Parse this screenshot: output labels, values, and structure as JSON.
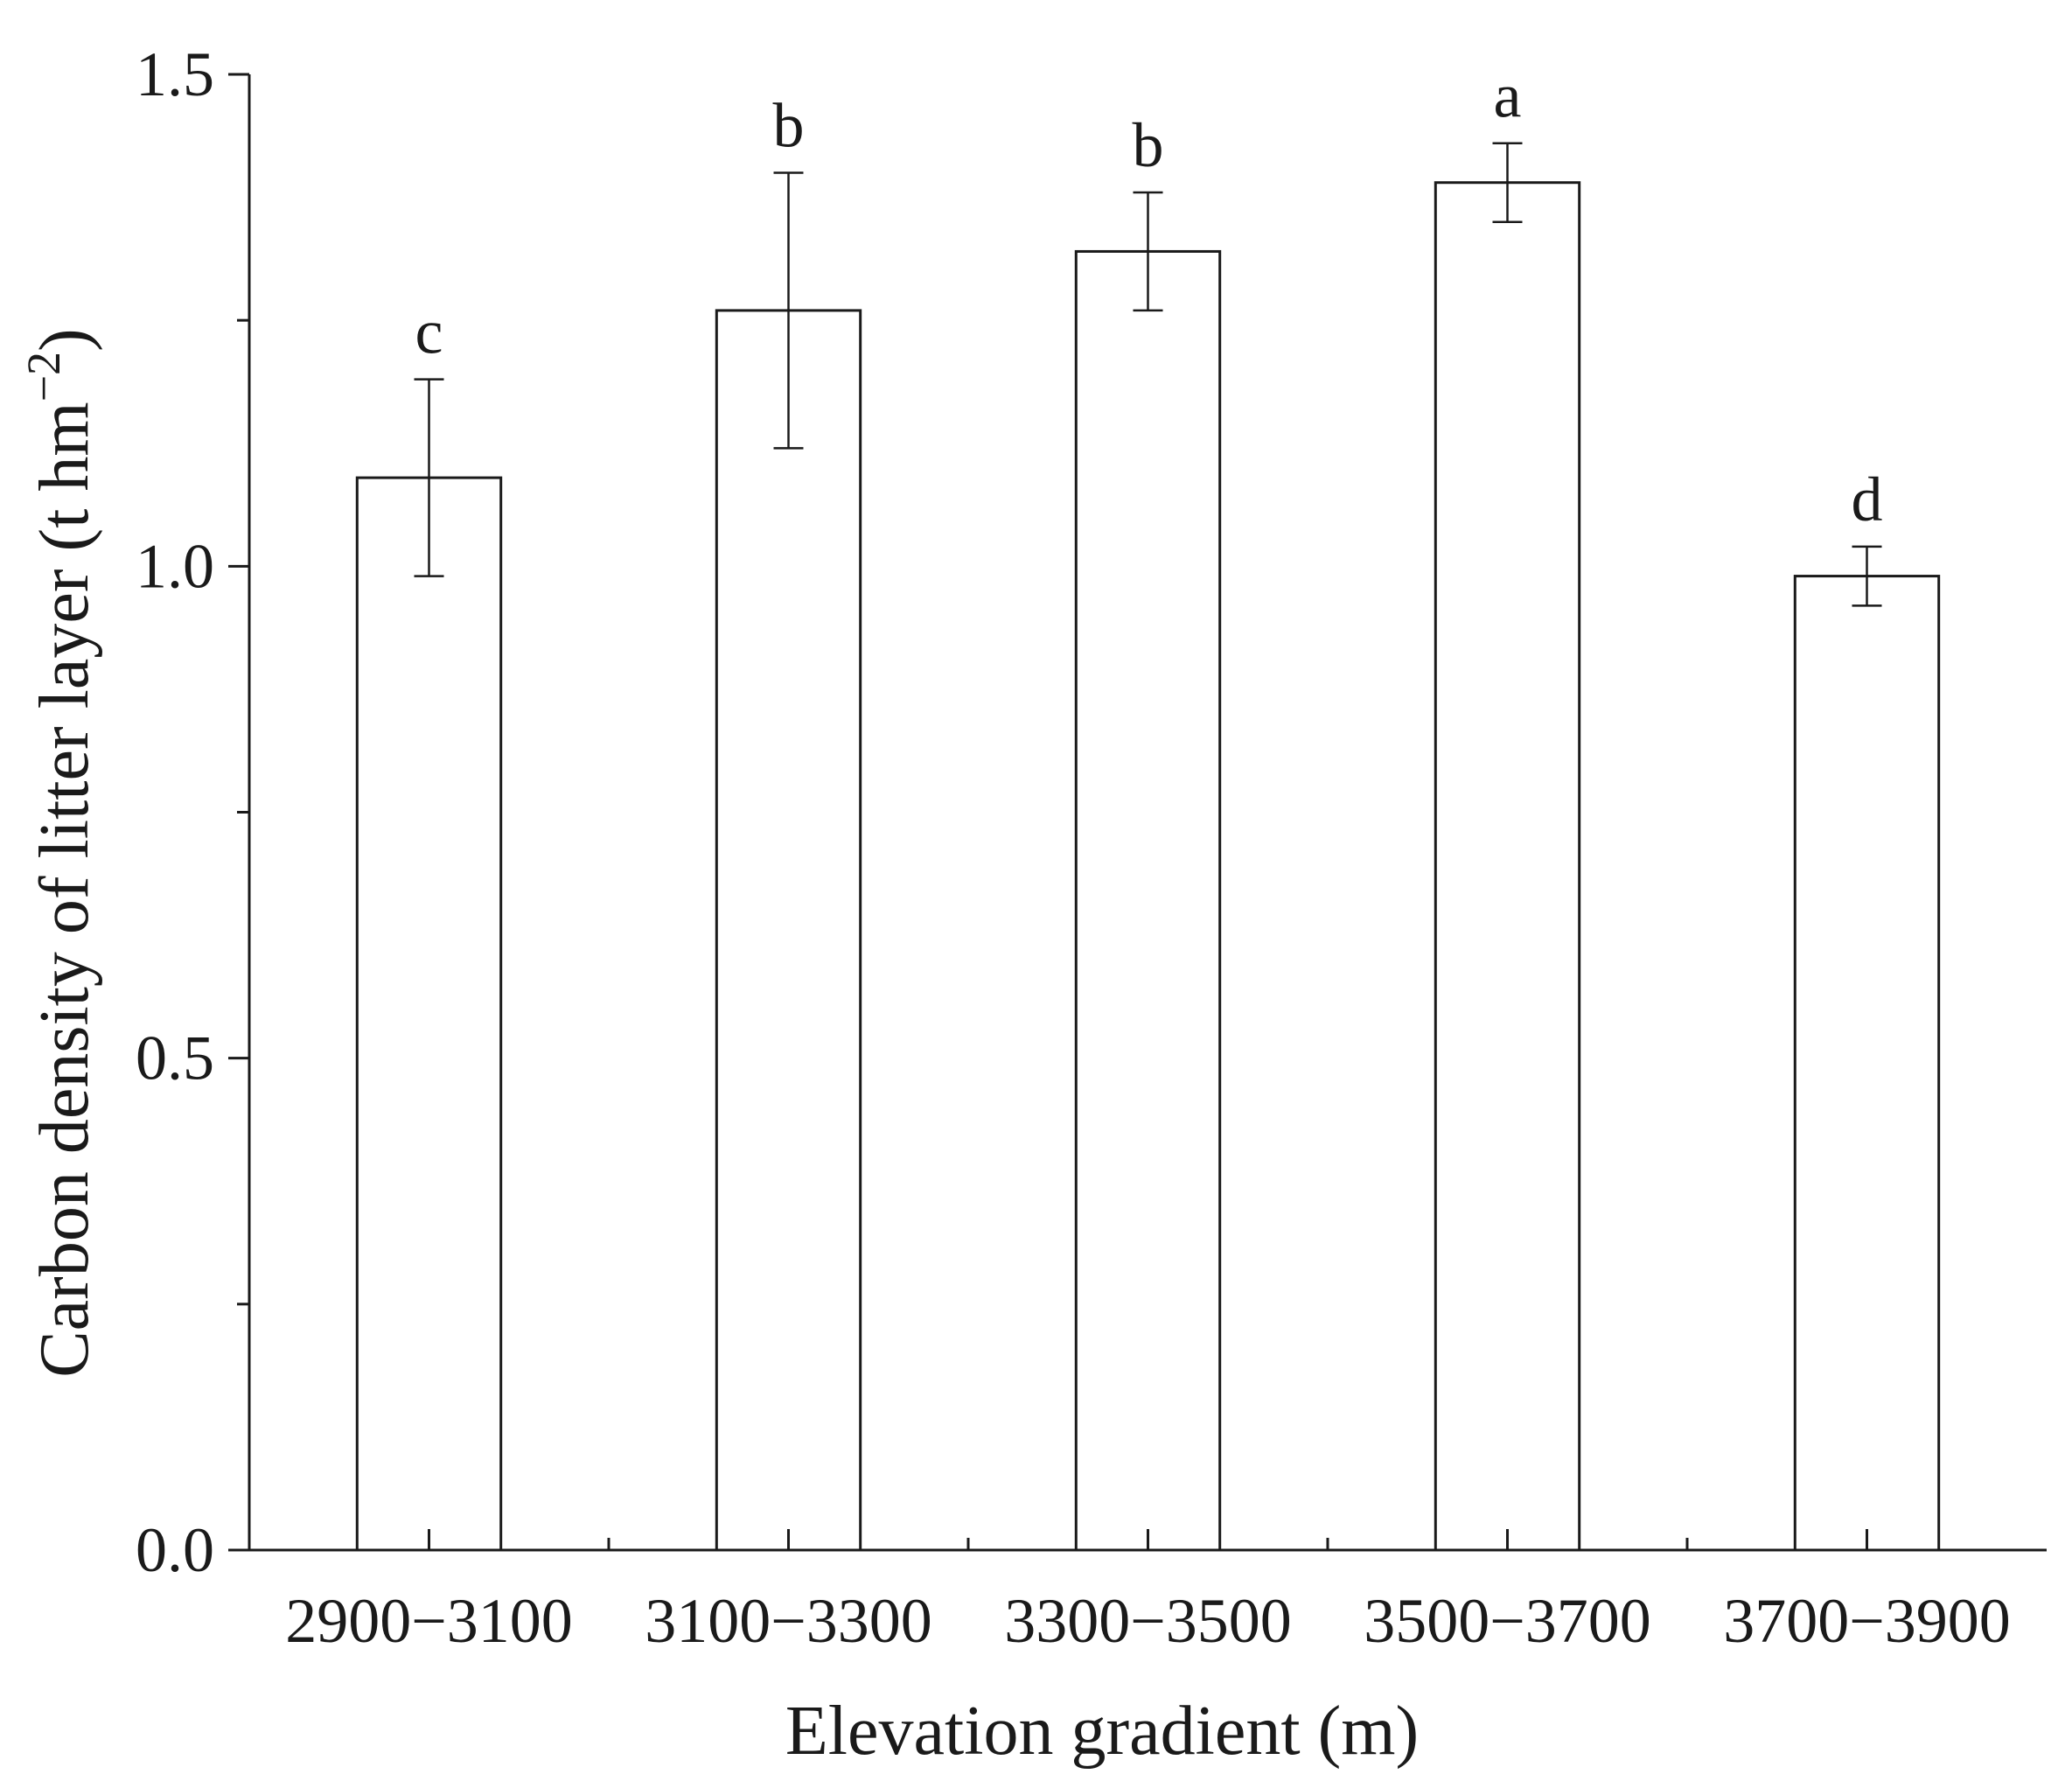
{
  "chart_data": {
    "type": "bar",
    "categories": [
      "2900−3100",
      "3100−3300",
      "3300−3500",
      "3500−3700",
      "3700−3900"
    ],
    "series": [
      {
        "values": [
          1.09,
          1.26,
          1.32,
          1.39,
          0.99
        ],
        "error": [
          0.1,
          0.14,
          0.06,
          0.04,
          0.03
        ],
        "labels": [
          "c",
          "b",
          "b",
          "a",
          "d"
        ]
      }
    ],
    "xlabel": "Elevation gradient (m)",
    "ylabel": "Carbon density of litter layer (t hm",
    "ylabel_superscript": "−2",
    "ylabel_suffix": ")",
    "ylim": [
      0,
      1.5
    ],
    "yticks": [
      0.0,
      0.5,
      1.0,
      1.5
    ],
    "ytick_labels": [
      "0.0",
      "0.5",
      "1.0",
      "1.5"
    ],
    "grid": false,
    "colors": {
      "bar_fill": "#ffffff",
      "bar_stroke": "#1a1a1a",
      "axis": "#1a1a1a"
    }
  }
}
